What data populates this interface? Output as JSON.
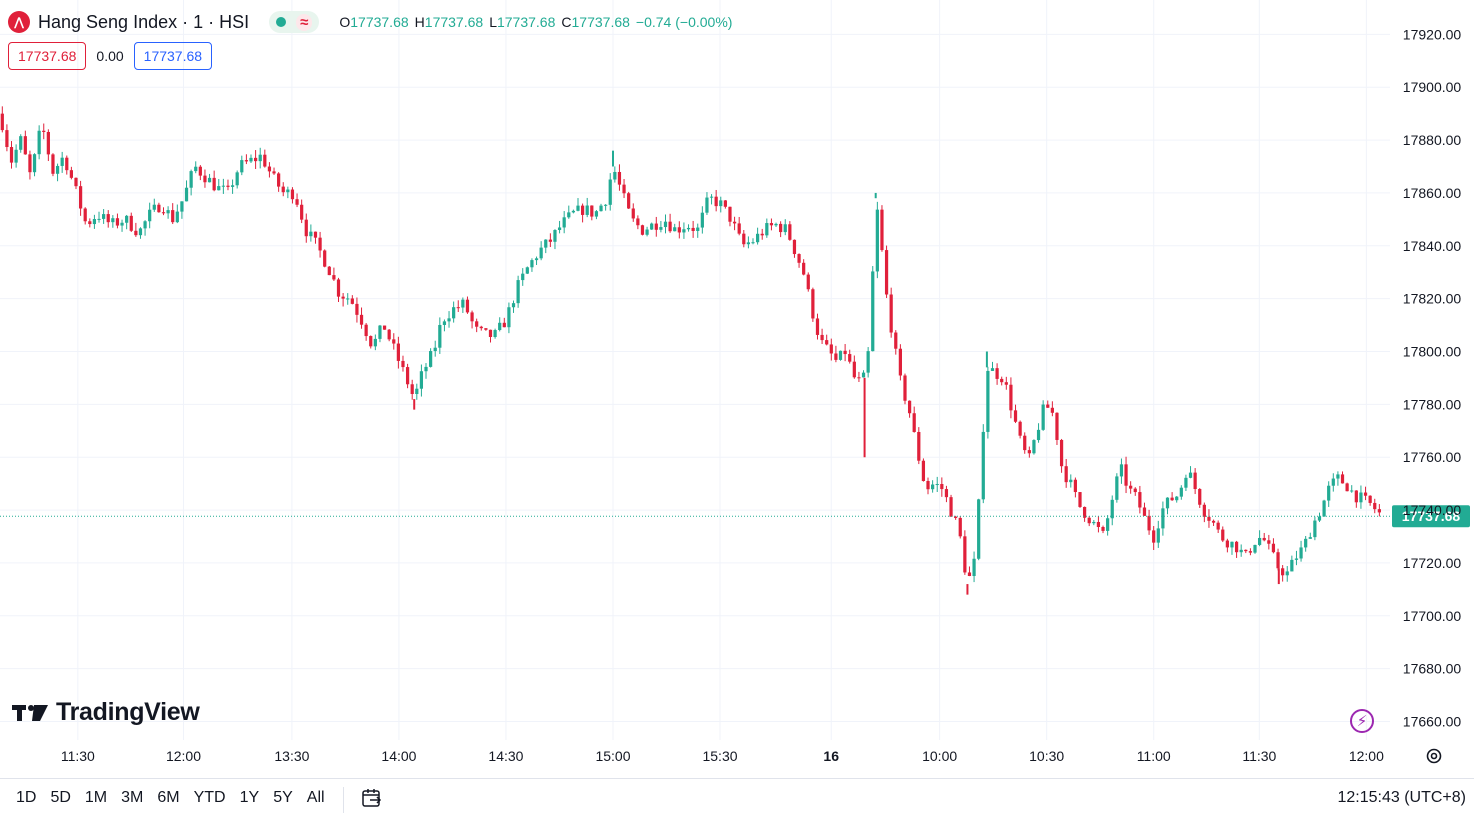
{
  "legend": {
    "symbol_letter": "⋀",
    "title": "Hang Seng Index · 1 · HSI",
    "status_icon": "wave-icon",
    "ohlc": [
      {
        "key": "O",
        "value": "17737.68"
      },
      {
        "key": "H",
        "value": "17737.68"
      },
      {
        "key": "L",
        "value": "17737.68"
      },
      {
        "key": "C",
        "value": "17737.68"
      },
      {
        "key": "",
        "value": "−0.74 (−0.00%)"
      }
    ],
    "bid": "17737.68",
    "spread": "0.00",
    "ask": "17737.68"
  },
  "logo": {
    "text": "TradingView",
    "mark": "17"
  },
  "bottom": {
    "ranges": [
      "1D",
      "5D",
      "1M",
      "3M",
      "6M",
      "YTD",
      "1Y",
      "5Y",
      "All"
    ],
    "clock": "12:15:43 (UTC+8)"
  },
  "colors": {
    "up": "#22ab94",
    "down": "#e0203a",
    "grid": "#f0f3fa",
    "price_line": "#22ab94"
  },
  "chart_data": {
    "type": "candlestick",
    "last_price": 17737.68,
    "last_price_label": "17737.68",
    "y_range": [
      17653,
      17933
    ],
    "y_ticks": [
      "17920.00",
      "17900.00",
      "17880.00",
      "17860.00",
      "17840.00",
      "17820.00",
      "17800.00",
      "17780.00",
      "17760.00",
      "17740.00",
      "17720.00",
      "17700.00",
      "17680.00",
      "17660.00"
    ],
    "x_ticks": [
      {
        "label": "11:30",
        "pos": 0.056
      },
      {
        "label": "12:00",
        "pos": 0.132
      },
      {
        "label": "13:30",
        "pos": 0.21
      },
      {
        "label": "14:00",
        "pos": 0.287
      },
      {
        "label": "14:30",
        "pos": 0.364
      },
      {
        "label": "15:00",
        "pos": 0.441
      },
      {
        "label": "15:30",
        "pos": 0.518
      },
      {
        "label": "16",
        "pos": 0.598,
        "bold": true
      },
      {
        "label": "10:00",
        "pos": 0.676
      },
      {
        "label": "10:30",
        "pos": 0.753
      },
      {
        "label": "11:00",
        "pos": 0.83
      },
      {
        "label": "11:30",
        "pos": 0.906
      },
      {
        "label": "12:00",
        "pos": 0.983
      }
    ],
    "close_path": [
      [
        0.0,
        17890
      ],
      [
        0.008,
        17872
      ],
      [
        0.015,
        17880
      ],
      [
        0.022,
        17866
      ],
      [
        0.03,
        17886
      ],
      [
        0.038,
        17868
      ],
      [
        0.046,
        17874
      ],
      [
        0.055,
        17860
      ],
      [
        0.062,
        17848
      ],
      [
        0.07,
        17852
      ],
      [
        0.08,
        17848
      ],
      [
        0.09,
        17850
      ],
      [
        0.1,
        17845
      ],
      [
        0.108,
        17852
      ],
      [
        0.116,
        17856
      ],
      [
        0.124,
        17850
      ],
      [
        0.132,
        17858
      ],
      [
        0.14,
        17870
      ],
      [
        0.148,
        17866
      ],
      [
        0.156,
        17862
      ],
      [
        0.164,
        17860
      ],
      [
        0.172,
        17870
      ],
      [
        0.18,
        17872
      ],
      [
        0.188,
        17874
      ],
      [
        0.196,
        17866
      ],
      [
        0.204,
        17860
      ],
      [
        0.212,
        17860
      ],
      [
        0.22,
        17846
      ],
      [
        0.228,
        17840
      ],
      [
        0.236,
        17832
      ],
      [
        0.244,
        17822
      ],
      [
        0.252,
        17820
      ],
      [
        0.26,
        17812
      ],
      [
        0.268,
        17802
      ],
      [
        0.276,
        17810
      ],
      [
        0.284,
        17800
      ],
      [
        0.292,
        17790
      ],
      [
        0.298,
        17782
      ],
      [
        0.304,
        17792
      ],
      [
        0.312,
        17800
      ],
      [
        0.318,
        17812
      ],
      [
        0.326,
        17816
      ],
      [
        0.334,
        17818
      ],
      [
        0.342,
        17808
      ],
      [
        0.35,
        17806
      ],
      [
        0.356,
        17806
      ],
      [
        0.364,
        17812
      ],
      [
        0.372,
        17824
      ],
      [
        0.38,
        17832
      ],
      [
        0.388,
        17838
      ],
      [
        0.396,
        17842
      ],
      [
        0.404,
        17848
      ],
      [
        0.412,
        17852
      ],
      [
        0.42,
        17854
      ],
      [
        0.428,
        17852
      ],
      [
        0.436,
        17858
      ],
      [
        0.441,
        17870
      ],
      [
        0.446,
        17862
      ],
      [
        0.454,
        17850
      ],
      [
        0.462,
        17846
      ],
      [
        0.47,
        17848
      ],
      [
        0.478,
        17850
      ],
      [
        0.486,
        17846
      ],
      [
        0.494,
        17848
      ],
      [
        0.502,
        17846
      ],
      [
        0.51,
        17858
      ],
      [
        0.518,
        17856
      ],
      [
        0.526,
        17850
      ],
      [
        0.534,
        17840
      ],
      [
        0.542,
        17842
      ],
      [
        0.55,
        17846
      ],
      [
        0.558,
        17848
      ],
      [
        0.566,
        17846
      ],
      [
        0.572,
        17838
      ],
      [
        0.578,
        17830
      ],
      [
        0.584,
        17816
      ],
      [
        0.59,
        17804
      ],
      [
        0.596,
        17800
      ],
      [
        0.602,
        17796
      ],
      [
        0.608,
        17800
      ],
      [
        0.612,
        17794
      ],
      [
        0.616,
        17788
      ],
      [
        0.622,
        17790
      ],
      [
        0.626,
        17804
      ],
      [
        0.63,
        17858
      ],
      [
        0.634,
        17840
      ],
      [
        0.638,
        17820
      ],
      [
        0.644,
        17800
      ],
      [
        0.648,
        17788
      ],
      [
        0.654,
        17778
      ],
      [
        0.66,
        17762
      ],
      [
        0.666,
        17748
      ],
      [
        0.672,
        17750
      ],
      [
        0.678,
        17748
      ],
      [
        0.684,
        17740
      ],
      [
        0.69,
        17732
      ],
      [
        0.696,
        17712
      ],
      [
        0.702,
        17722
      ],
      [
        0.706,
        17760
      ],
      [
        0.71,
        17794
      ],
      [
        0.716,
        17792
      ],
      [
        0.722,
        17790
      ],
      [
        0.728,
        17778
      ],
      [
        0.734,
        17766
      ],
      [
        0.74,
        17758
      ],
      [
        0.746,
        17770
      ],
      [
        0.752,
        17780
      ],
      [
        0.758,
        17776
      ],
      [
        0.764,
        17756
      ],
      [
        0.77,
        17750
      ],
      [
        0.776,
        17742
      ],
      [
        0.782,
        17738
      ],
      [
        0.788,
        17734
      ],
      [
        0.794,
        17730
      ],
      [
        0.8,
        17744
      ],
      [
        0.806,
        17756
      ],
      [
        0.812,
        17748
      ],
      [
        0.818,
        17744
      ],
      [
        0.824,
        17736
      ],
      [
        0.83,
        17730
      ],
      [
        0.836,
        17740
      ],
      [
        0.842,
        17744
      ],
      [
        0.848,
        17746
      ],
      [
        0.854,
        17756
      ],
      [
        0.86,
        17748
      ],
      [
        0.866,
        17740
      ],
      [
        0.872,
        17736
      ],
      [
        0.878,
        17730
      ],
      [
        0.884,
        17728
      ],
      [
        0.89,
        17726
      ],
      [
        0.896,
        17722
      ],
      [
        0.902,
        17728
      ],
      [
        0.908,
        17730
      ],
      [
        0.914,
        17724
      ],
      [
        0.92,
        17718
      ],
      [
        0.926,
        17716
      ],
      [
        0.932,
        17722
      ],
      [
        0.938,
        17726
      ],
      [
        0.944,
        17734
      ],
      [
        0.95,
        17740
      ],
      [
        0.956,
        17748
      ],
      [
        0.962,
        17752
      ],
      [
        0.968,
        17750
      ],
      [
        0.974,
        17746
      ],
      [
        0.98,
        17744
      ],
      [
        0.986,
        17742
      ],
      [
        0.99,
        17740
      ],
      [
        0.994,
        17737.68
      ]
    ],
    "spikes": [
      {
        "pos": 0.298,
        "low": 17778
      },
      {
        "pos": 0.63,
        "high": 17860
      },
      {
        "pos": 0.622,
        "low": 17760
      },
      {
        "pos": 0.696,
        "low": 17708
      },
      {
        "pos": 0.71,
        "high": 17800
      },
      {
        "pos": 0.441,
        "high": 17876
      },
      {
        "pos": 0.92,
        "low": 17712
      }
    ]
  }
}
